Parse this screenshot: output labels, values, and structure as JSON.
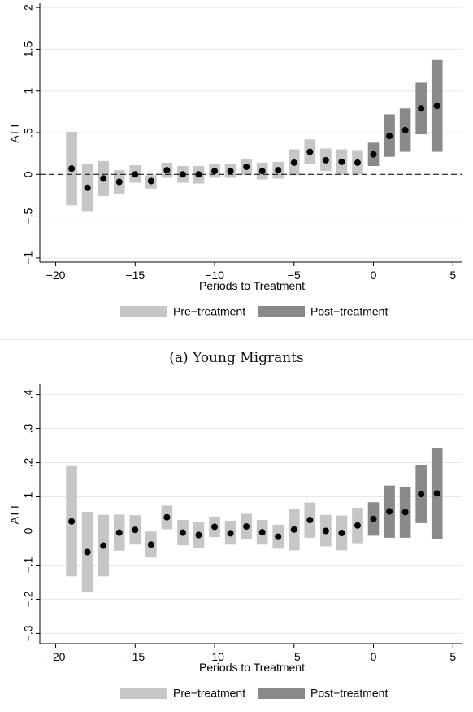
{
  "figure_caption": "(a) Young Migrants",
  "colors": {
    "pre": "#c6c6c6",
    "post": "#8a8a8a",
    "point": "#000000",
    "grid": "#e8e8e8"
  },
  "chart_data": [
    {
      "type": "scatter",
      "title": "",
      "xlabel": "Periods to Treatment",
      "ylabel": "ATT",
      "xlim": [
        -21,
        5.6
      ],
      "ylim": [
        -1.05,
        2.05
      ],
      "xticks": [
        -20,
        -15,
        -10,
        -5,
        0,
        5
      ],
      "xtick_labels": [
        "−20",
        "−15",
        "−10",
        "−5",
        "0",
        "5"
      ],
      "yticks": [
        -1,
        -0.5,
        0,
        0.5,
        1,
        1.5,
        2
      ],
      "ytick_labels": [
        "−1",
        "−.5",
        "0",
        ".5",
        "1",
        "1.5",
        "2"
      ],
      "grid": true,
      "reference_line": 0,
      "legend": {
        "position": "bottom",
        "entries": [
          "Pre−treatment",
          "Post−treatment"
        ]
      },
      "series": [
        {
          "name": "Pre−treatment",
          "x": [
            -19,
            -18,
            -17,
            -16,
            -15,
            -14,
            -13,
            -12,
            -11,
            -10,
            -9,
            -8,
            -7,
            -6,
            -5,
            -4,
            -3,
            -2,
            -1
          ],
          "estimate": [
            0.07,
            -0.16,
            -0.05,
            -0.09,
            0.0,
            -0.08,
            0.05,
            0.0,
            0.0,
            0.04,
            0.04,
            0.09,
            0.04,
            0.05,
            0.14,
            0.27,
            0.17,
            0.15,
            0.14
          ],
          "ci_low": [
            -0.37,
            -0.44,
            -0.26,
            -0.23,
            -0.1,
            -0.17,
            -0.04,
            -0.1,
            -0.11,
            -0.04,
            -0.04,
            0.0,
            -0.06,
            -0.05,
            -0.01,
            0.13,
            0.04,
            0.0,
            0.0
          ],
          "ci_high": [
            0.51,
            0.13,
            0.16,
            0.05,
            0.11,
            -0.01,
            0.14,
            0.1,
            0.1,
            0.12,
            0.12,
            0.18,
            0.14,
            0.15,
            0.3,
            0.42,
            0.31,
            0.3,
            0.29
          ]
        },
        {
          "name": "Post−treatment",
          "x": [
            0,
            1,
            2,
            3,
            4
          ],
          "estimate": [
            0.24,
            0.46,
            0.53,
            0.79,
            0.82
          ],
          "ci_low": [
            0.1,
            0.21,
            0.27,
            0.48,
            0.27
          ],
          "ci_high": [
            0.38,
            0.72,
            0.79,
            1.1,
            1.37
          ]
        }
      ]
    },
    {
      "type": "scatter",
      "title": "",
      "xlabel": "Periods to Treatment",
      "ylabel": "ATT",
      "xlim": [
        -21,
        5.6
      ],
      "ylim": [
        -0.33,
        0.43
      ],
      "xticks": [
        -20,
        -15,
        -10,
        -5,
        0,
        5
      ],
      "xtick_labels": [
        "−20",
        "−15",
        "−10",
        "−5",
        "0",
        "5"
      ],
      "yticks": [
        -0.3,
        -0.2,
        -0.1,
        0,
        0.1,
        0.2,
        0.3,
        0.4
      ],
      "ytick_labels": [
        "−.3",
        "−.2",
        "−.1",
        "0",
        ".1",
        ".2",
        ".3",
        ".4"
      ],
      "grid": true,
      "reference_line": 0,
      "legend": {
        "position": "bottom",
        "entries": [
          "Pre−treatment",
          "Post−treatment"
        ]
      },
      "series": [
        {
          "name": "Pre−treatment",
          "x": [
            -19,
            -18,
            -17,
            -16,
            -15,
            -14,
            -13,
            -12,
            -11,
            -10,
            -9,
            -8,
            -7,
            -6,
            -5,
            -4,
            -3,
            -2,
            -1
          ],
          "estimate": [
            0.028,
            -0.062,
            -0.043,
            -0.005,
            0.003,
            -0.04,
            0.04,
            -0.005,
            -0.012,
            0.012,
            -0.007,
            0.013,
            -0.004,
            -0.017,
            0.004,
            0.032,
            0.0,
            -0.006,
            0.016
          ],
          "ci_low": [
            -0.133,
            -0.18,
            -0.133,
            -0.058,
            -0.04,
            -0.078,
            0.005,
            -0.042,
            -0.05,
            -0.018,
            -0.04,
            -0.025,
            -0.04,
            -0.052,
            -0.057,
            -0.02,
            -0.045,
            -0.057,
            -0.036
          ],
          "ci_high": [
            0.19,
            0.056,
            0.047,
            0.048,
            0.046,
            -0.002,
            0.074,
            0.032,
            0.027,
            0.042,
            0.03,
            0.05,
            0.032,
            0.018,
            0.063,
            0.083,
            0.047,
            0.045,
            0.068
          ]
        },
        {
          "name": "Post−treatment",
          "x": [
            0,
            1,
            2,
            3,
            4
          ],
          "estimate": [
            0.035,
            0.057,
            0.055,
            0.108,
            0.11
          ],
          "ci_low": [
            -0.014,
            -0.02,
            -0.02,
            0.023,
            -0.023
          ],
          "ci_high": [
            0.084,
            0.133,
            0.13,
            0.193,
            0.243
          ]
        }
      ]
    }
  ]
}
